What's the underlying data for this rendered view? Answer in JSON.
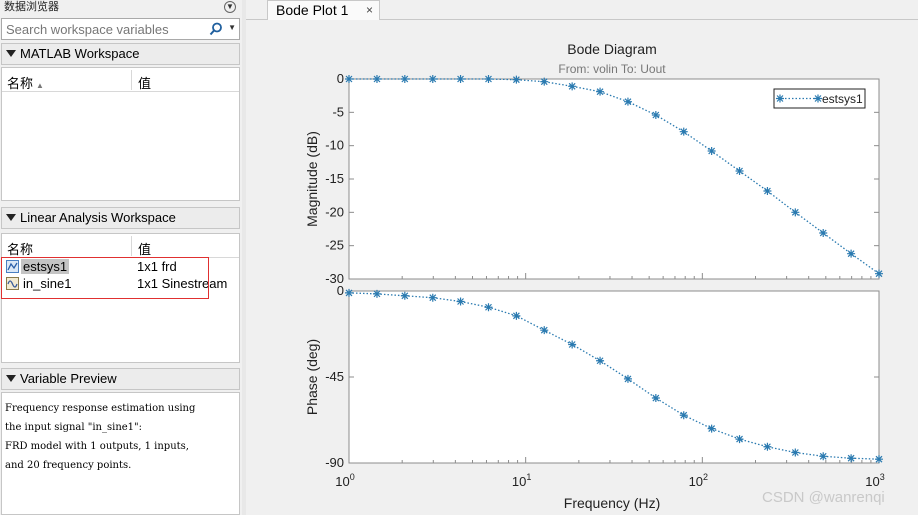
{
  "left_panel": {
    "title": "数据浏览器",
    "title_menu_glyph": "▼",
    "search": {
      "placeholder": "Search workspace variables"
    },
    "matlab_ws": {
      "label": "MATLAB Workspace",
      "col_name": "名称",
      "col_value": "值"
    },
    "linear_ws": {
      "label": "Linear Analysis Workspace",
      "col_name": "名称",
      "col_value": "值",
      "rows": [
        {
          "name": "estsys1",
          "value": "1x1 frd",
          "selected": true
        },
        {
          "name": "in_sine1",
          "value": "1x1 Sinestream",
          "selected": false
        }
      ]
    },
    "preview": {
      "label": "Variable Preview",
      "lines": [
        "Frequency response estimation using",
        "the input signal \"in_sine1\":",
        "FRD model with 1 outputs, 1 inputs,",
        "and 20 frequency points."
      ]
    }
  },
  "tab": {
    "label": "Bode Plot 1",
    "close": "×"
  },
  "watermark": "CSDN @wanrenqi",
  "chart_data": {
    "type": "line",
    "title": "Bode Diagram",
    "subtitle": "From: volin  To: Uout",
    "xlabel": "Frequency  (Hz)",
    "xscale": "log",
    "xlim": [
      1,
      1000
    ],
    "x_ticks": [
      {
        "base": "10",
        "exp": "0"
      },
      {
        "base": "10",
        "exp": "1"
      },
      {
        "base": "10",
        "exp": "2"
      },
      {
        "base": "10",
        "exp": "3"
      }
    ],
    "color": "#2a7ab0",
    "legend": {
      "label": "estsys1",
      "placement": "top-right"
    },
    "x": [
      1,
      1.44,
      2.07,
      2.98,
      4.28,
      6.16,
      8.86,
      12.74,
      18.33,
      26.37,
      37.93,
      54.56,
      78.48,
      112.9,
      162.4,
      233.6,
      336.0,
      483.3,
      695.2,
      1000
    ],
    "magnitude": {
      "ylabel": "Magnitude (dB)",
      "ylim": [
        -30,
        0
      ],
      "yticks": [
        "0",
        "-5",
        "-10",
        "-15",
        "-20",
        "-25",
        "-30"
      ],
      "values": [
        0,
        0,
        0,
        0,
        0,
        0,
        -0.1,
        -0.4,
        -1.1,
        -1.9,
        -3.4,
        -5.4,
        -7.9,
        -10.8,
        -13.8,
        -16.8,
        -20.0,
        -23.1,
        -26.2,
        -29.2
      ]
    },
    "phase": {
      "ylabel": "Phase (deg)",
      "ylim": [
        -90,
        0
      ],
      "yticks": [
        "0",
        "-45",
        "-90"
      ],
      "values": [
        -1,
        -1.5,
        -2.5,
        -3.5,
        -5.5,
        -8.5,
        -13,
        -20.5,
        -28,
        -36.5,
        -46,
        -56,
        -65,
        -72,
        -77.5,
        -81.5,
        -84.5,
        -86.5,
        -87.5,
        -88
      ]
    }
  }
}
